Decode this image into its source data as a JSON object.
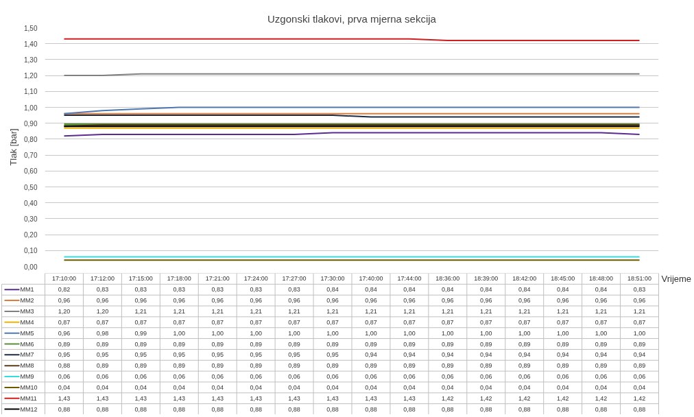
{
  "chart_data": {
    "type": "line",
    "title": "Uzgonski tlakovi, prva mjerna sekcija",
    "xlabel": "Vrijeme",
    "ylabel": "Tlak [bar]",
    "categories": [
      "17:10:00",
      "17:12:00",
      "17:15:00",
      "17:18:00",
      "17:21:00",
      "17:24:00",
      "17:27:00",
      "17:30:00",
      "17:40:00",
      "17:44:00",
      "18:36:00",
      "18:39:00",
      "18:42:00",
      "18:45:00",
      "18:48:00",
      "18:51:00"
    ],
    "ylim": [
      0,
      1.5
    ],
    "yticks": [
      {
        "value": 0,
        "label": "0,00"
      },
      {
        "value": 0.1,
        "label": "0,10"
      },
      {
        "value": 0.2,
        "label": "0,20"
      },
      {
        "value": 0.3,
        "label": "0,30"
      },
      {
        "value": 0.4,
        "label": "0,40"
      },
      {
        "value": 0.5,
        "label": "0,50"
      },
      {
        "value": 0.6,
        "label": "0,60"
      },
      {
        "value": 0.7,
        "label": "0,70"
      },
      {
        "value": 0.8,
        "label": "0,80"
      },
      {
        "value": 0.9,
        "label": "0,90"
      },
      {
        "value": 1.0,
        "label": "1,00"
      },
      {
        "value": 1.1,
        "label": "1,10"
      },
      {
        "value": 1.2,
        "label": "1,20"
      },
      {
        "value": 1.3,
        "label": "1,30"
      },
      {
        "value": 1.4,
        "label": "1,40"
      },
      {
        "value": 1.5,
        "label": "1,50"
      }
    ],
    "grid": "y",
    "legend": "bottom",
    "marker": "none",
    "line_style": "solid",
    "series": [
      {
        "name": "MM1",
        "color": "#5b2c8f",
        "values": [
          0.82,
          0.83,
          0.83,
          0.83,
          0.83,
          0.83,
          0.83,
          0.84,
          0.84,
          0.84,
          0.84,
          0.84,
          0.84,
          0.84,
          0.84,
          0.83
        ],
        "value_labels": [
          "0,82",
          "0,83",
          "0,83",
          "0,83",
          "0,83",
          "0,83",
          "0,83",
          "0,84",
          "0,84",
          "0,84",
          "0,84",
          "0,84",
          "0,84",
          "0,84",
          "0,84",
          "0,83"
        ]
      },
      {
        "name": "MM2",
        "color": "#e07b39",
        "values": [
          0.96,
          0.96,
          0.96,
          0.96,
          0.96,
          0.96,
          0.96,
          0.96,
          0.96,
          0.96,
          0.96,
          0.96,
          0.96,
          0.96,
          0.96,
          0.96
        ],
        "value_labels": [
          "0,96",
          "0,96",
          "0,96",
          "0,96",
          "0,96",
          "0,96",
          "0,96",
          "0,96",
          "0,96",
          "0,96",
          "0,96",
          "0,96",
          "0,96",
          "0,96",
          "0,96",
          "0,96"
        ]
      },
      {
        "name": "MM3",
        "color": "#808080",
        "values": [
          1.2,
          1.2,
          1.21,
          1.21,
          1.21,
          1.21,
          1.21,
          1.21,
          1.21,
          1.21,
          1.21,
          1.21,
          1.21,
          1.21,
          1.21,
          1.21
        ],
        "value_labels": [
          "1,20",
          "1,20",
          "1,21",
          "1,21",
          "1,21",
          "1,21",
          "1,21",
          "1,21",
          "1,21",
          "1,21",
          "1,21",
          "1,21",
          "1,21",
          "1,21",
          "1,21",
          "1,21"
        ]
      },
      {
        "name": "MM4",
        "color": "#f2b200",
        "values": [
          0.87,
          0.87,
          0.87,
          0.87,
          0.87,
          0.87,
          0.87,
          0.87,
          0.87,
          0.87,
          0.87,
          0.87,
          0.87,
          0.87,
          0.87,
          0.87
        ],
        "value_labels": [
          "0,87",
          "0,87",
          "0,87",
          "0,87",
          "0,87",
          "0,87",
          "0,87",
          "0,87",
          "0,87",
          "0,87",
          "0,87",
          "0,87",
          "0,87",
          "0,87",
          "0,87",
          "0,87"
        ]
      },
      {
        "name": "MM5",
        "color": "#4f78b0",
        "values": [
          0.96,
          0.98,
          0.99,
          1.0,
          1.0,
          1.0,
          1.0,
          1.0,
          1.0,
          1.0,
          1.0,
          1.0,
          1.0,
          1.0,
          1.0,
          1.0
        ],
        "value_labels": [
          "0,96",
          "0,98",
          "0,99",
          "1,00",
          "1,00",
          "1,00",
          "1,00",
          "1,00",
          "1,00",
          "1,00",
          "1,00",
          "1,00",
          "1,00",
          "1,00",
          "1,00",
          "1,00"
        ]
      },
      {
        "name": "MM6",
        "color": "#5a8f3a",
        "values": [
          0.89,
          0.89,
          0.89,
          0.89,
          0.89,
          0.89,
          0.89,
          0.89,
          0.89,
          0.89,
          0.89,
          0.89,
          0.89,
          0.89,
          0.89,
          0.89
        ],
        "value_labels": [
          "0,89",
          "0,89",
          "0,89",
          "0,89",
          "0,89",
          "0,89",
          "0,89",
          "0,89",
          "0,89",
          "0,89",
          "0,89",
          "0,89",
          "0,89",
          "0,89",
          "0,89",
          "0,89"
        ]
      },
      {
        "name": "MM7",
        "color": "#1f2a44",
        "values": [
          0.95,
          0.95,
          0.95,
          0.95,
          0.95,
          0.95,
          0.95,
          0.95,
          0.94,
          0.94,
          0.94,
          0.94,
          0.94,
          0.94,
          0.94,
          0.94
        ],
        "value_labels": [
          "0,95",
          "0,95",
          "0,95",
          "0,95",
          "0,95",
          "0,95",
          "0,95",
          "0,95",
          "0,94",
          "0,94",
          "0,94",
          "0,94",
          "0,94",
          "0,94",
          "0,94",
          "0,94"
        ]
      },
      {
        "name": "MM8",
        "color": "#5c3a1a",
        "values": [
          0.88,
          0.89,
          0.89,
          0.89,
          0.89,
          0.89,
          0.89,
          0.89,
          0.89,
          0.89,
          0.89,
          0.89,
          0.89,
          0.89,
          0.89,
          0.89
        ],
        "value_labels": [
          "0,88",
          "0,89",
          "0,89",
          "0,89",
          "0,89",
          "0,89",
          "0,89",
          "0,89",
          "0,89",
          "0,89",
          "0,89",
          "0,89",
          "0,89",
          "0,89",
          "0,89",
          "0,89"
        ]
      },
      {
        "name": "MM9",
        "color": "#33dddd",
        "values": [
          0.06,
          0.06,
          0.06,
          0.06,
          0.06,
          0.06,
          0.06,
          0.06,
          0.06,
          0.06,
          0.06,
          0.06,
          0.06,
          0.06,
          0.06,
          0.06
        ],
        "value_labels": [
          "0,06",
          "0,06",
          "0,06",
          "0,06",
          "0,06",
          "0,06",
          "0,06",
          "0,06",
          "0,06",
          "0,06",
          "0,06",
          "0,06",
          "0,06",
          "0,06",
          "0,06",
          "0,06"
        ]
      },
      {
        "name": "MM10",
        "color": "#6b5a00",
        "values": [
          0.04,
          0.04,
          0.04,
          0.04,
          0.04,
          0.04,
          0.04,
          0.04,
          0.04,
          0.04,
          0.04,
          0.04,
          0.04,
          0.04,
          0.04,
          0.04
        ],
        "value_labels": [
          "0,04",
          "0,04",
          "0,04",
          "0,04",
          "0,04",
          "0,04",
          "0,04",
          "0,04",
          "0,04",
          "0,04",
          "0,04",
          "0,04",
          "0,04",
          "0,04",
          "0,04",
          "0,04"
        ]
      },
      {
        "name": "MM11",
        "color": "#cc1f1f",
        "values": [
          1.43,
          1.43,
          1.43,
          1.43,
          1.43,
          1.43,
          1.43,
          1.43,
          1.43,
          1.43,
          1.42,
          1.42,
          1.42,
          1.42,
          1.42,
          1.42
        ],
        "value_labels": [
          "1,43",
          "1,43",
          "1,43",
          "1,43",
          "1,43",
          "1,43",
          "1,43",
          "1,43",
          "1,43",
          "1,43",
          "1,42",
          "1,42",
          "1,42",
          "1,42",
          "1,42",
          "1,42"
        ]
      },
      {
        "name": "MM12",
        "color": "#000000",
        "values": [
          0.88,
          0.88,
          0.88,
          0.88,
          0.88,
          0.88,
          0.88,
          0.88,
          0.88,
          0.88,
          0.88,
          0.88,
          0.88,
          0.88,
          0.88,
          0.88
        ],
        "value_labels": [
          "0,88",
          "0,88",
          "0,88",
          "0,88",
          "0,88",
          "0,88",
          "0,88",
          "0,88",
          "0,88",
          "0,88",
          "0,88",
          "0,88",
          "0,88",
          "0,88",
          "0,88",
          "0,88"
        ]
      }
    ]
  }
}
